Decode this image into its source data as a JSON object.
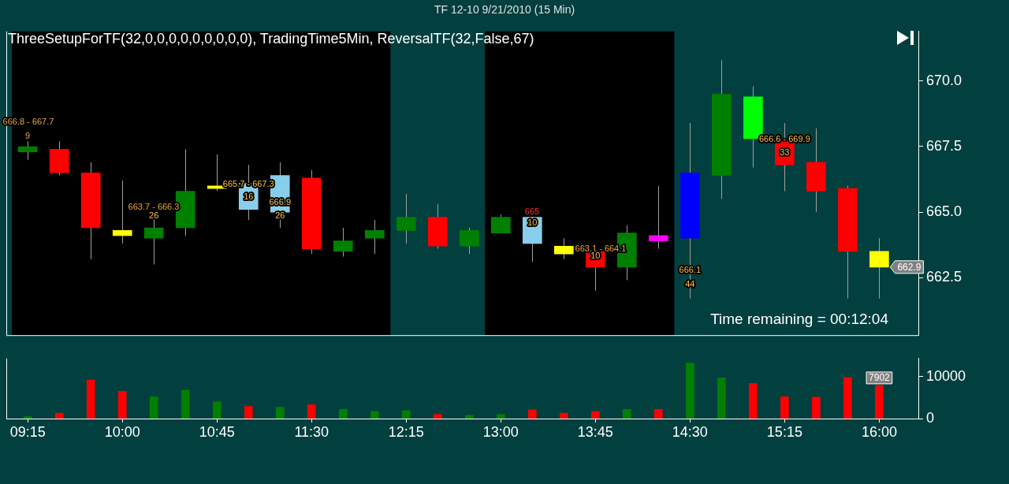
{
  "chart_data": [
    {
      "type": "candlestick",
      "title": "TF 12-10  9/21/2010 (15 Min)",
      "subtitle": "ThreeSetupForTF(32,0,0,0,0,0,0,0,0,0), TradingTime5Min, ReversalTF(32,False,67)",
      "x": [
        9.25,
        9.5,
        9.75,
        10,
        10.25,
        10.5,
        10.75,
        11,
        11.25,
        11.5,
        11.75,
        12,
        12.25,
        12.5,
        12.75,
        13,
        13.25,
        13.5,
        13.75,
        14,
        14.25,
        14.5,
        14.75,
        15,
        15.25,
        15.5,
        15.75,
        16
      ],
      "ohlc": [
        [
          667.3,
          667.7,
          667.0,
          667.5
        ],
        [
          667.4,
          667.7,
          666.4,
          666.5
        ],
        [
          666.5,
          666.9,
          663.2,
          664.4
        ],
        [
          664.3,
          666.2,
          663.8,
          664.1
        ],
        [
          664.0,
          664.8,
          663.0,
          664.4
        ],
        [
          664.4,
          667.4,
          664.1,
          665.8
        ],
        [
          665.9,
          667.2,
          665.8,
          666.0
        ],
        [
          666.1,
          666.8,
          664.7,
          665.1
        ],
        [
          665.0,
          666.9,
          664.4,
          666.4
        ],
        [
          666.3,
          666.6,
          663.4,
          663.6
        ],
        [
          663.5,
          664.4,
          663.3,
          663.9
        ],
        [
          664.0,
          664.7,
          663.4,
          664.3
        ],
        [
          664.3,
          665.7,
          663.8,
          664.8
        ],
        [
          664.8,
          665.3,
          663.6,
          663.7
        ],
        [
          663.7,
          664.4,
          663.4,
          664.3
        ],
        [
          664.2,
          664.9,
          664.2,
          664.8
        ],
        [
          664.8,
          664.8,
          663.1,
          663.8
        ],
        [
          663.7,
          664.0,
          663.2,
          663.4
        ],
        [
          663.5,
          663.5,
          662.0,
          662.9
        ],
        [
          662.9,
          664.5,
          662.4,
          664.2
        ],
        [
          664.1,
          666.0,
          663.6,
          663.9
        ],
        [
          664.0,
          668.4,
          661.7,
          666.5
        ],
        [
          666.4,
          670.8,
          665.5,
          669.5
        ],
        [
          669.4,
          669.8,
          666.7,
          667.8
        ],
        [
          667.8,
          668.4,
          665.8,
          666.8
        ],
        [
          666.9,
          668.2,
          665.0,
          665.8
        ],
        [
          665.9,
          666.0,
          661.7,
          663.5
        ],
        [
          663.5,
          664.0,
          661.7,
          662.9
        ]
      ],
      "colors": [
        "#008000",
        "#ff0000",
        "#ff0000",
        "#ffff00",
        "#008000",
        "#008000",
        "#ffff00",
        "#87ceeb",
        "#87ceeb",
        "#ff0000",
        "#008000",
        "#008000",
        "#008000",
        "#ff0000",
        "#008000",
        "#008000",
        "#87ceeb",
        "#ffff00",
        "#ff0000",
        "#008000",
        "#ff00ff",
        "#0000ff",
        "#008000",
        "#00ff00",
        "#ff0000",
        "#ff0000",
        "#ff0000",
        "#ffff00"
      ],
      "xlim": [
        9.08,
        16.31
      ],
      "ylim": [
        660.3,
        671.9
      ],
      "yticks": [
        {
          "value": 662.5,
          "label": "662.5"
        },
        {
          "value": 665,
          "label": "665.0"
        },
        {
          "value": 667.5,
          "label": "667.5"
        },
        {
          "value": 670,
          "label": "670.0"
        }
      ],
      "tick_labels": "y",
      "bands": [
        {
          "axis": "x",
          "from": 9.125,
          "to": 12.125,
          "color": "#000000"
        },
        {
          "axis": "x",
          "from": 12.875,
          "to": 14.375,
          "color": "#000000"
        }
      ],
      "annotations": [
        "666.8 - 667.7",
        "9",
        "663.7 - 666.3",
        {
          "text": "26",
          "x": 10.25,
          "y": 664.86
        },
        {
          "text": "665.7 - 667.3",
          "x": 11.0,
          "y": 666.06
        },
        {
          "text": "16",
          "x": 11.0,
          "y": 665.57
        },
        {
          "text": "666.9",
          "x": 11.25,
          "y": 665.37
        },
        {
          "text": "26",
          "x": 11.25,
          "y": 664.86
        },
        "665",
        {
          "text": "10",
          "x": 13.25,
          "y": 664.57
        },
        "663.1 - 664.1",
        {
          "text": "10",
          "x": 13.75,
          "y": 663.33
        },
        {
          "text": "666.1",
          "x": 14.5,
          "y": 662.76
        },
        {
          "text": "44",
          "x": 14.5,
          "y": 662.24
        },
        {
          "text": "666.6 - 669.9",
          "x": 15.25,
          "y": 667.76
        },
        {
          "text": "33",
          "x": 15.25,
          "y": 667.27
        },
        {
          "text": "662.9",
          "x": 16,
          "y": 662.9
        },
        "Time remaining = 00:12:04"
      ],
      "grid": false,
      "legend": false
    },
    {
      "type": "bar",
      "x": [
        9.25,
        9.5,
        9.75,
        10,
        10.25,
        10.5,
        10.75,
        11,
        11.25,
        11.5,
        11.75,
        12,
        12.25,
        12.5,
        12.75,
        13,
        13.25,
        13.5,
        13.75,
        14,
        14.25,
        14.5,
        14.75,
        15,
        15.25,
        15.5,
        15.75,
        16
      ],
      "values": [
        500,
        1300,
        9200,
        6500,
        5200,
        6800,
        4000,
        2900,
        2700,
        3300,
        2200,
        1700,
        1900,
        1000,
        800,
        1000,
        2100,
        1300,
        1700,
        2200,
        2200,
        13200,
        9700,
        8400,
        5200,
        5100,
        9800,
        7902
      ],
      "value_labels": [
        null,
        null,
        null,
        null,
        null,
        null,
        null,
        null,
        null,
        null,
        null,
        null,
        null,
        null,
        null,
        null,
        null,
        null,
        null,
        null,
        null,
        null,
        null,
        null,
        null,
        null,
        null,
        "7902"
      ],
      "colors": [
        "#008000",
        "#ff0000",
        "#ff0000",
        "#ff0000",
        "#008000",
        "#008000",
        "#008000",
        "#ff0000",
        "#008000",
        "#ff0000",
        "#008000",
        "#008000",
        "#008000",
        "#ff0000",
        "#008000",
        "#008000",
        "#ff0000",
        "#ff0000",
        "#ff0000",
        "#008000",
        "#ff0000",
        "#008000",
        "#008000",
        "#ff0000",
        "#ff0000",
        "#ff0000",
        "#ff0000",
        "#ff0000"
      ],
      "xlim": [
        9.08,
        16.31
      ],
      "ylim": [
        0,
        14300
      ],
      "xticks": [
        {
          "value": 9.25,
          "label": "09:15"
        },
        {
          "value": 10,
          "label": "10:00"
        },
        {
          "value": 10.75,
          "label": "10:45"
        },
        {
          "value": 11.5,
          "label": "11:30"
        },
        {
          "value": 12.25,
          "label": "12:15"
        },
        {
          "value": 13,
          "label": "13:00"
        },
        {
          "value": 13.75,
          "label": "13:45"
        },
        {
          "value": 14.5,
          "label": "14:30"
        },
        {
          "value": 15.25,
          "label": "15:15"
        },
        {
          "value": 16,
          "label": "16:00"
        }
      ],
      "yticks": [
        0,
        10000
      ],
      "grid": false,
      "legend": false
    }
  ]
}
